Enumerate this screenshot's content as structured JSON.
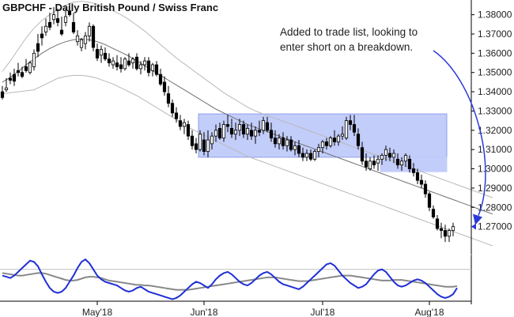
{
  "chart_data": {
    "type": "candlestick",
    "title": "GBPCHF - Daily  British Pound / Swiss Franc",
    "annotation": [
      "Added to trade list, looking to",
      "enter short on a breakdown."
    ],
    "y_ticks": [
      "1.38000",
      "1.37000",
      "1.36000",
      "1.35000",
      "1.34000",
      "1.33000",
      "1.32000",
      "1.31000",
      "1.30000",
      "1.29000",
      "1.28000",
      "1.27000"
    ],
    "ylim": [
      1.26,
      1.386
    ],
    "x_month_labels": [
      {
        "label": "May'18",
        "index": 24
      },
      {
        "label": "Jun'18",
        "index": 51
      },
      {
        "label": "Jul'18",
        "index": 81
      },
      {
        "label": "Aug'18",
        "index": 108
      }
    ],
    "last_price": 1.27,
    "colors": {
      "candle": "#000000",
      "bands": "#b8b8b8",
      "middle_band": "#707070",
      "range_box_fill": "#c3cdfa",
      "range_box_border": "#8fa0ec",
      "annotation_arrow": "#2b39d9",
      "oscillator_fast": "#1f2fd6",
      "oscillator_slow": "#888888",
      "marker": "#2b39d9"
    },
    "range_box": {
      "from_index": 50,
      "to_index": 112,
      "top": 1.3285,
      "bottom": 1.306
    },
    "lower_break_box": {
      "from_index": 96,
      "to_index": 112,
      "top": 1.306,
      "bottom": 1.2985
    },
    "candles": [
      [
        1.34,
        1.343,
        1.336,
        1.337
      ],
      [
        1.341,
        1.347,
        1.34,
        1.342
      ],
      [
        1.347,
        1.35,
        1.344,
        1.346
      ],
      [
        1.349,
        1.352,
        1.343,
        1.3455
      ],
      [
        1.351,
        1.355,
        1.348,
        1.35
      ],
      [
        1.35,
        1.353,
        1.347,
        1.348
      ],
      [
        1.353,
        1.357,
        1.35,
        1.351
      ],
      [
        1.35,
        1.356,
        1.349,
        1.355
      ],
      [
        1.353,
        1.362,
        1.351,
        1.36
      ],
      [
        1.365,
        1.37,
        1.358,
        1.361
      ],
      [
        1.37,
        1.374,
        1.364,
        1.368
      ],
      [
        1.371,
        1.378,
        1.369,
        1.374
      ],
      [
        1.376,
        1.381,
        1.372,
        1.3735
      ],
      [
        1.3775,
        1.384,
        1.375,
        1.38
      ],
      [
        1.378,
        1.383,
        1.374,
        1.376
      ],
      [
        1.372,
        1.379,
        1.369,
        1.37
      ],
      [
        1.376,
        1.383,
        1.374,
        1.379
      ],
      [
        1.382,
        1.386,
        1.379,
        1.38
      ],
      [
        1.376,
        1.381,
        1.37,
        1.371
      ],
      [
        1.366,
        1.372,
        1.364,
        1.369
      ],
      [
        1.363,
        1.368,
        1.361,
        1.367
      ],
      [
        1.365,
        1.371,
        1.362,
        1.369
      ],
      [
        1.369,
        1.376,
        1.366,
        1.374
      ],
      [
        1.374,
        1.375,
        1.361,
        1.363
      ],
      [
        1.362,
        1.365,
        1.356,
        1.3575
      ],
      [
        1.359,
        1.364,
        1.355,
        1.362
      ],
      [
        1.36,
        1.363,
        1.356,
        1.357
      ],
      [
        1.357,
        1.36,
        1.353,
        1.355
      ],
      [
        1.354,
        1.358,
        1.352,
        1.356
      ],
      [
        1.355,
        1.359,
        1.351,
        1.353
      ],
      [
        1.354,
        1.358,
        1.35,
        1.352
      ],
      [
        1.352,
        1.358,
        1.351,
        1.357
      ],
      [
        1.356,
        1.36,
        1.353,
        1.354
      ],
      [
        1.355,
        1.358,
        1.352,
        1.357
      ],
      [
        1.358,
        1.36,
        1.351,
        1.352
      ],
      [
        1.352,
        1.356,
        1.349,
        1.354
      ],
      [
        1.354,
        1.358,
        1.351,
        1.356
      ],
      [
        1.356,
        1.358,
        1.348,
        1.35
      ],
      [
        1.351,
        1.355,
        1.348,
        1.354
      ],
      [
        1.354,
        1.356,
        1.348,
        1.349
      ],
      [
        1.349,
        1.352,
        1.343,
        1.344
      ],
      [
        1.345,
        1.348,
        1.338,
        1.34
      ],
      [
        1.339,
        1.343,
        1.332,
        1.334
      ],
      [
        1.334,
        1.336,
        1.327,
        1.329
      ],
      [
        1.329,
        1.332,
        1.324,
        1.326
      ],
      [
        1.325,
        1.328,
        1.32,
        1.322
      ],
      [
        1.322,
        1.326,
        1.318,
        1.324
      ],
      [
        1.323,
        1.325,
        1.315,
        1.317
      ],
      [
        1.317,
        1.32,
        1.31,
        1.312
      ],
      [
        1.313,
        1.316,
        1.308,
        1.31
      ],
      [
        1.31,
        1.32,
        1.309,
        1.318
      ],
      [
        1.315,
        1.319,
        1.307,
        1.309
      ],
      [
        1.309,
        1.32,
        1.306,
        1.315
      ],
      [
        1.313,
        1.319,
        1.31,
        1.317
      ],
      [
        1.317,
        1.323,
        1.314,
        1.32
      ],
      [
        1.321,
        1.324,
        1.315,
        1.316
      ],
      [
        1.316,
        1.325,
        1.314,
        1.323
      ],
      [
        1.323,
        1.328,
        1.319,
        1.322
      ],
      [
        1.321,
        1.326,
        1.316,
        1.318
      ],
      [
        1.318,
        1.324,
        1.315,
        1.32
      ],
      [
        1.32,
        1.326,
        1.317,
        1.323
      ],
      [
        1.323,
        1.325,
        1.316,
        1.318
      ],
      [
        1.318,
        1.323,
        1.315,
        1.321
      ],
      [
        1.32,
        1.324,
        1.315,
        1.317
      ],
      [
        1.317,
        1.322,
        1.313,
        1.32
      ],
      [
        1.32,
        1.325,
        1.317,
        1.319
      ],
      [
        1.32,
        1.327,
        1.318,
        1.325
      ],
      [
        1.324,
        1.327,
        1.319,
        1.32
      ],
      [
        1.32,
        1.324,
        1.314,
        1.316
      ],
      [
        1.316,
        1.32,
        1.311,
        1.313
      ],
      [
        1.313,
        1.318,
        1.31,
        1.316
      ],
      [
        1.316,
        1.319,
        1.31,
        1.312
      ],
      [
        1.312,
        1.317,
        1.309,
        1.315
      ],
      [
        1.315,
        1.317,
        1.309,
        1.31
      ],
      [
        1.31,
        1.314,
        1.307,
        1.312
      ],
      [
        1.312,
        1.315,
        1.306,
        1.308
      ],
      [
        1.308,
        1.311,
        1.304,
        1.306
      ],
      [
        1.306,
        1.31,
        1.304,
        1.308
      ],
      [
        1.308,
        1.31,
        1.304,
        1.305
      ],
      [
        1.305,
        1.31,
        1.304,
        1.309
      ],
      [
        1.309,
        1.313,
        1.306,
        1.311
      ],
      [
        1.311,
        1.315,
        1.308,
        1.314
      ],
      [
        1.314,
        1.316,
        1.31,
        1.312
      ],
      [
        1.312,
        1.317,
        1.311,
        1.316
      ],
      [
        1.316,
        1.32,
        1.312,
        1.314
      ],
      [
        1.314,
        1.318,
        1.312,
        1.317
      ],
      [
        1.317,
        1.322,
        1.315,
        1.318
      ],
      [
        1.316,
        1.327,
        1.315,
        1.325
      ],
      [
        1.325,
        1.328,
        1.32,
        1.323
      ],
      [
        1.323,
        1.328,
        1.317,
        1.319
      ],
      [
        1.318,
        1.321,
        1.31,
        1.312
      ],
      [
        1.311,
        1.314,
        1.302,
        1.304
      ],
      [
        1.304,
        1.308,
        1.299,
        1.301
      ],
      [
        1.3,
        1.306,
        1.299,
        1.304
      ],
      [
        1.304,
        1.307,
        1.3,
        1.302
      ],
      [
        1.303,
        1.307,
        1.299,
        1.305
      ],
      [
        1.305,
        1.308,
        1.302,
        1.307
      ],
      [
        1.307,
        1.312,
        1.304,
        1.31
      ],
      [
        1.308,
        1.311,
        1.304,
        1.306
      ],
      [
        1.306,
        1.31,
        1.303,
        1.308
      ],
      [
        1.305,
        1.308,
        1.3,
        1.302
      ],
      [
        1.302,
        1.306,
        1.299,
        1.304
      ],
      [
        1.304,
        1.308,
        1.301,
        1.307
      ],
      [
        1.305,
        1.307,
        1.298,
        1.3
      ],
      [
        1.3,
        1.303,
        1.296,
        1.298
      ],
      [
        1.298,
        1.3,
        1.292,
        1.294
      ],
      [
        1.294,
        1.297,
        1.29,
        1.292
      ],
      [
        1.292,
        1.294,
        1.285,
        1.287
      ],
      [
        1.287,
        1.288,
        1.278,
        1.28
      ],
      [
        1.279,
        1.281,
        1.274,
        1.275
      ],
      [
        1.274,
        1.276,
        1.268,
        1.269
      ],
      [
        1.269,
        1.272,
        1.264,
        1.268
      ],
      [
        1.268,
        1.271,
        1.262,
        1.265
      ],
      [
        1.265,
        1.269,
        1.262,
        1.268
      ],
      [
        1.268,
        1.272,
        1.265,
        1.27
      ]
    ],
    "upper_band": [
      1.3505,
      1.356,
      1.362,
      1.368,
      1.373,
      1.377,
      1.38,
      1.3825,
      1.385,
      1.3865,
      1.387,
      1.3865,
      1.3855,
      1.384,
      1.382,
      1.38,
      1.3775,
      1.3745,
      1.3715,
      1.368,
      1.3645,
      1.361,
      1.3575,
      1.3545,
      1.3515,
      1.3485,
      1.3455,
      1.3425,
      1.3395,
      1.337,
      1.3345,
      1.332,
      1.33,
      1.3285,
      1.327,
      1.3255,
      1.324,
      1.3225,
      1.321,
      1.3195,
      1.318,
      1.3165,
      1.315,
      1.3135,
      1.312,
      1.3105,
      1.309,
      1.3075,
      1.306,
      1.3045,
      1.303,
      1.3015,
      1.3,
      1.2985,
      1.297,
      1.2955,
      1.294,
      1.2925,
      1.291,
      1.2895,
      1.288,
      1.2865,
      1.285
    ],
    "middle_band": [
      1.345,
      1.3475,
      1.3505,
      1.354,
      1.357,
      1.36,
      1.3625,
      1.3645,
      1.366,
      1.367,
      1.3675,
      1.367,
      1.366,
      1.3645,
      1.3625,
      1.3605,
      1.3585,
      1.356,
      1.3535,
      1.351,
      1.3485,
      1.346,
      1.3435,
      1.341,
      1.3385,
      1.336,
      1.3335,
      1.331,
      1.329,
      1.327,
      1.325,
      1.323,
      1.3215,
      1.32,
      1.3185,
      1.317,
      1.3155,
      1.314,
      1.3125,
      1.311,
      1.3095,
      1.308,
      1.3065,
      1.305,
      1.3035,
      1.302,
      1.3005,
      1.299,
      1.2975,
      1.296,
      1.2945,
      1.293,
      1.2915,
      1.29,
      1.2885,
      1.287,
      1.2855,
      1.284,
      1.2825,
      1.281,
      1.2795,
      1.278,
      1.2765
    ],
    "lower_band": [
      1.339,
      1.3395,
      1.34,
      1.3405,
      1.341,
      1.343,
      1.345,
      1.347,
      1.348,
      1.3485,
      1.3485,
      1.348,
      1.347,
      1.3455,
      1.344,
      1.342,
      1.34,
      1.338,
      1.3355,
      1.333,
      1.3305,
      1.328,
      1.3255,
      1.323,
      1.3205,
      1.3185,
      1.3165,
      1.3145,
      1.3125,
      1.3105,
      1.3085,
      1.3065,
      1.305,
      1.3035,
      1.302,
      1.3005,
      1.299,
      1.2975,
      1.296,
      1.2945,
      1.293,
      1.2915,
      1.29,
      1.2885,
      1.287,
      1.2855,
      1.284,
      1.2825,
      1.281,
      1.2795,
      1.278,
      1.2765,
      1.275,
      1.2735,
      1.272,
      1.2705,
      1.269,
      1.2675,
      1.266,
      1.2645,
      1.263,
      1.2615,
      1.26
    ],
    "oscillator_fast": [
      40,
      38,
      36,
      40,
      46,
      52,
      58,
      64,
      62,
      55,
      42,
      30,
      20,
      14,
      12,
      14,
      20,
      30,
      40,
      52,
      62,
      66,
      60,
      50,
      40,
      34,
      30,
      28,
      26,
      24,
      20,
      16,
      14,
      16,
      20,
      22,
      18,
      14,
      12,
      10,
      8,
      6,
      4,
      2,
      4,
      8,
      14,
      20,
      26,
      30,
      28,
      24,
      20,
      26,
      34,
      40,
      44,
      46,
      42,
      36,
      30,
      26,
      24,
      28,
      34,
      40,
      44,
      46,
      42,
      36,
      30,
      26,
      24,
      22,
      20,
      18,
      22,
      28,
      34,
      40,
      46,
      52,
      58,
      60,
      56,
      48,
      40,
      34,
      28,
      24,
      20,
      22,
      26,
      34,
      42,
      48,
      50,
      46,
      38,
      30,
      24,
      22,
      24,
      28,
      32,
      34,
      32,
      28,
      22,
      16,
      10,
      6,
      4,
      6,
      10,
      20
    ],
    "oscillator_slow": [
      44,
      43,
      42,
      41,
      40,
      40,
      41,
      42,
      43,
      44,
      44,
      43,
      41,
      39,
      37,
      35,
      33,
      32,
      32,
      33,
      35,
      37,
      38,
      38,
      37,
      36,
      34,
      32,
      31,
      30,
      29,
      28,
      27,
      26,
      25,
      25,
      24,
      24,
      23,
      22,
      21,
      20,
      19,
      18,
      17,
      17,
      17,
      17,
      18,
      19,
      20,
      21,
      22,
      23,
      24,
      25,
      26,
      27,
      28,
      29,
      30,
      31,
      32,
      33,
      34,
      35,
      36,
      37,
      37,
      37,
      36,
      35,
      34,
      33,
      32,
      31,
      31,
      31,
      32,
      33,
      34,
      35,
      36,
      37,
      38,
      39,
      40,
      40,
      40,
      39,
      38,
      37,
      36,
      35,
      34,
      33,
      32,
      32,
      32,
      33,
      33,
      33,
      32,
      31,
      30,
      29,
      28,
      27,
      26,
      25,
      24,
      23,
      22,
      22,
      22,
      23
    ],
    "osc_reference_level": 50
  }
}
